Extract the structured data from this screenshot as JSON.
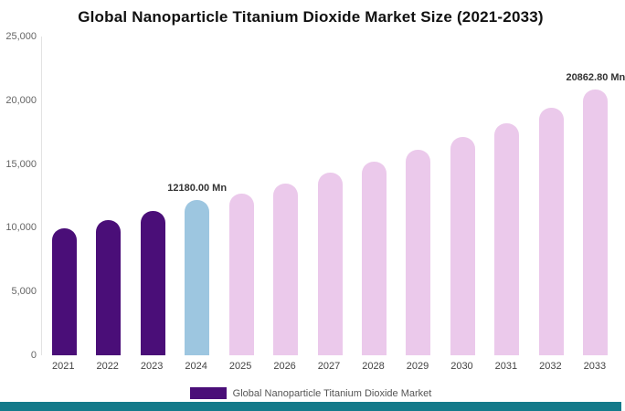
{
  "title": "Global Nanoparticle Titanium Dioxide Market Size (2021-2033)",
  "legend": {
    "label": "Global Nanoparticle Titanium Dioxide Market",
    "swatch_color": "#4a0e78"
  },
  "colors": {
    "dark_purple": "#4a0e78",
    "highlight_blue": "#9dc6e0",
    "forecast_pink": "#ebc9eb",
    "footer_teal": "#147a8a",
    "background": "#ffffff"
  },
  "chart_data": {
    "type": "bar",
    "title": "Global Nanoparticle Titanium Dioxide Market Size (2021-2033)",
    "categories": [
      "2021",
      "2022",
      "2023",
      "2024",
      "2025",
      "2026",
      "2027",
      "2028",
      "2029",
      "2030",
      "2031",
      "2032",
      "2033"
    ],
    "values": [
      9950,
      10600,
      11300,
      12180,
      12700,
      13500,
      14300,
      15200,
      16100,
      17100,
      18200,
      19400,
      20862.8
    ],
    "bar_colors": [
      "#4a0e78",
      "#4a0e78",
      "#4a0e78",
      "#9dc6e0",
      "#ebc9eb",
      "#ebc9eb",
      "#ebc9eb",
      "#ebc9eb",
      "#ebc9eb",
      "#ebc9eb",
      "#ebc9eb",
      "#ebc9eb",
      "#ebc9eb"
    ],
    "annotations": [
      {
        "category": "2024",
        "text": "12180.00 Mn"
      },
      {
        "category": "2033",
        "text": "20862.80 Mn"
      }
    ],
    "xlabel": "",
    "ylabel": "",
    "ylim": [
      0,
      25000
    ],
    "yticks": [
      [
        25000,
        "25,000"
      ],
      [
        20000,
        "20,000"
      ],
      [
        15000,
        "15,000"
      ],
      [
        10000,
        "10,000"
      ],
      [
        5000,
        "5,000"
      ],
      [
        0,
        "0"
      ]
    ],
    "grid": false,
    "legend_position": "bottom"
  }
}
